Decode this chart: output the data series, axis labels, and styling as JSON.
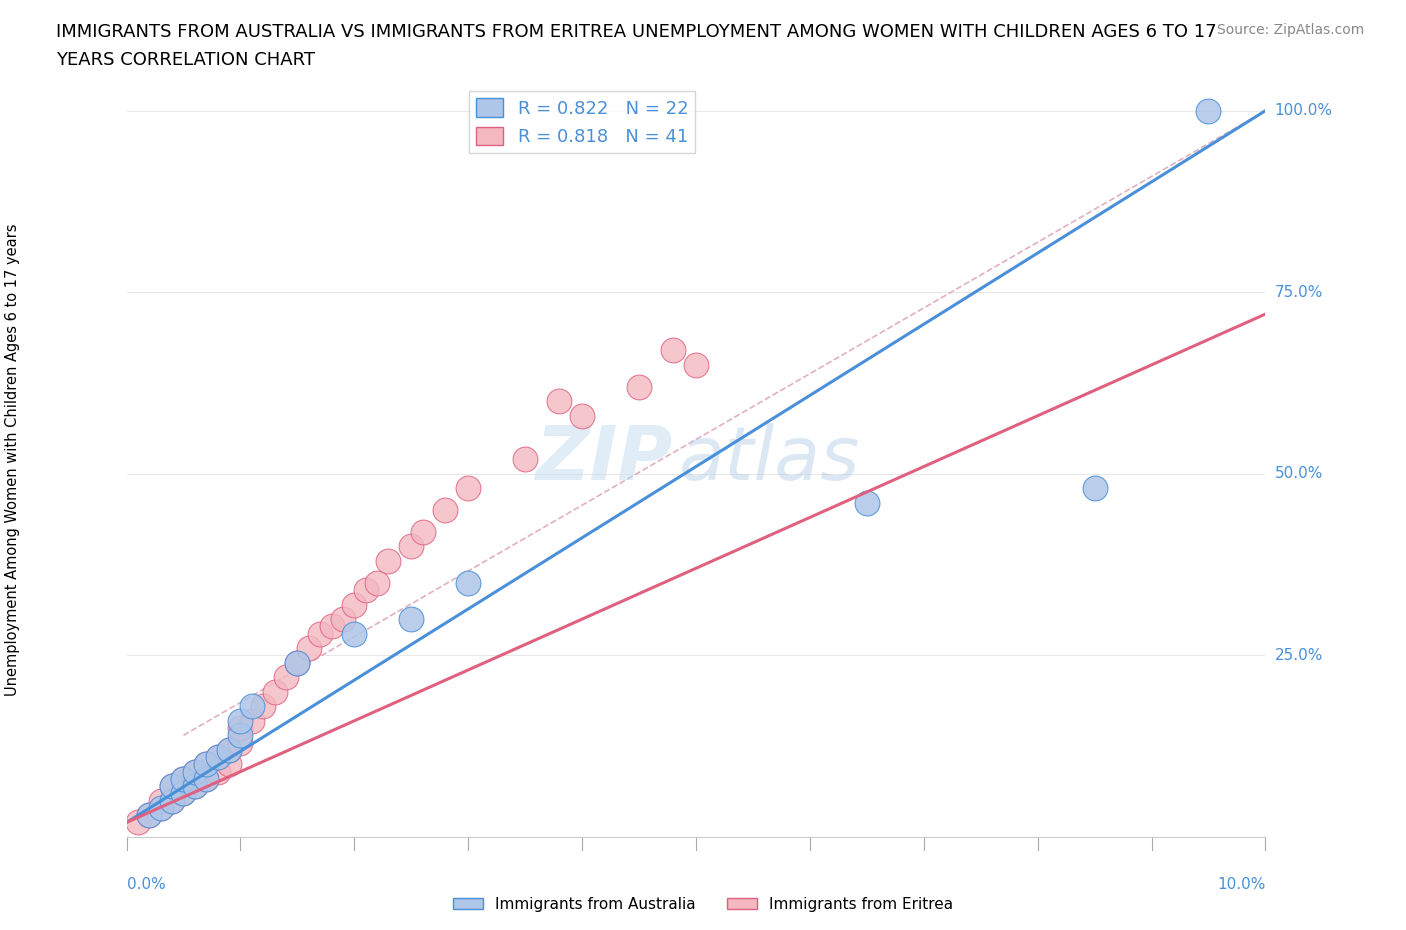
{
  "title_line1": "IMMIGRANTS FROM AUSTRALIA VS IMMIGRANTS FROM ERITREA UNEMPLOYMENT AMONG WOMEN WITH CHILDREN AGES 6 TO 17",
  "title_line2": "YEARS CORRELATION CHART",
  "source": "Source: ZipAtlas.com",
  "xlabel_bottom_left": "0.0%",
  "xlabel_bottom_right": "10.0%",
  "ylabel": "Unemployment Among Women with Children Ages 6 to 17 years",
  "xmin": 0.0,
  "xmax": 10.0,
  "ymin": 0.0,
  "ymax": 105.0,
  "y_ticks": [
    0,
    25,
    50,
    75,
    100
  ],
  "y_tick_labels": [
    "",
    "25.0%",
    "50.0%",
    "75.0%",
    "100.0%"
  ],
  "r_australia": 0.822,
  "n_australia": 22,
  "r_eritrea": 0.818,
  "n_eritrea": 41,
  "color_australia": "#aec6e8",
  "color_eritrea": "#f4b8c1",
  "line_color_australia": "#4a90d9",
  "line_color_eritrea": "#e06080",
  "watermark_zip": "ZIP",
  "watermark_atlas": "atlas",
  "background_color": "#ffffff",
  "aus_line_x0": 0.0,
  "aus_line_y0": 2.0,
  "aus_line_x1": 10.0,
  "aus_line_y1": 100.0,
  "eri_line_x0": 0.0,
  "eri_line_y0": 2.0,
  "eri_line_x1": 10.0,
  "eri_line_y1": 72.0,
  "ref_line_x0": 0.5,
  "ref_line_y0": 14.0,
  "ref_line_x1": 10.0,
  "ref_line_y1": 100.0,
  "australia_x": [
    0.2,
    0.3,
    0.4,
    0.4,
    0.5,
    0.5,
    0.6,
    0.6,
    0.7,
    0.7,
    0.8,
    0.9,
    1.0,
    1.0,
    1.1,
    1.5,
    2.5,
    3.0,
    6.5,
    8.5,
    9.5,
    2.0
  ],
  "australia_y": [
    3,
    4,
    5,
    7,
    6,
    8,
    7,
    9,
    8,
    10,
    11,
    12,
    14,
    16,
    18,
    24,
    30,
    35,
    46,
    48,
    100,
    28
  ],
  "eritrea_x": [
    0.1,
    0.2,
    0.3,
    0.3,
    0.4,
    0.4,
    0.5,
    0.5,
    0.6,
    0.6,
    0.7,
    0.7,
    0.8,
    0.8,
    0.9,
    0.9,
    1.0,
    1.0,
    1.1,
    1.2,
    1.3,
    1.4,
    1.5,
    1.6,
    1.7,
    1.8,
    1.9,
    2.0,
    2.1,
    2.2,
    2.3,
    2.5,
    2.6,
    2.8,
    3.0,
    3.5,
    4.0,
    4.5,
    5.0,
    3.8,
    4.8
  ],
  "eritrea_y": [
    2,
    3,
    4,
    5,
    5,
    7,
    6,
    8,
    7,
    9,
    8,
    10,
    9,
    11,
    10,
    12,
    13,
    15,
    16,
    18,
    20,
    22,
    24,
    26,
    28,
    29,
    30,
    32,
    34,
    35,
    38,
    40,
    42,
    45,
    48,
    52,
    58,
    62,
    65,
    60,
    67
  ],
  "ref_line_color": "#e0b0c0",
  "title_fontsize": 13,
  "source_fontsize": 10,
  "axis_label_color": "#4a90d9",
  "grid_color": "#e8e8e8"
}
